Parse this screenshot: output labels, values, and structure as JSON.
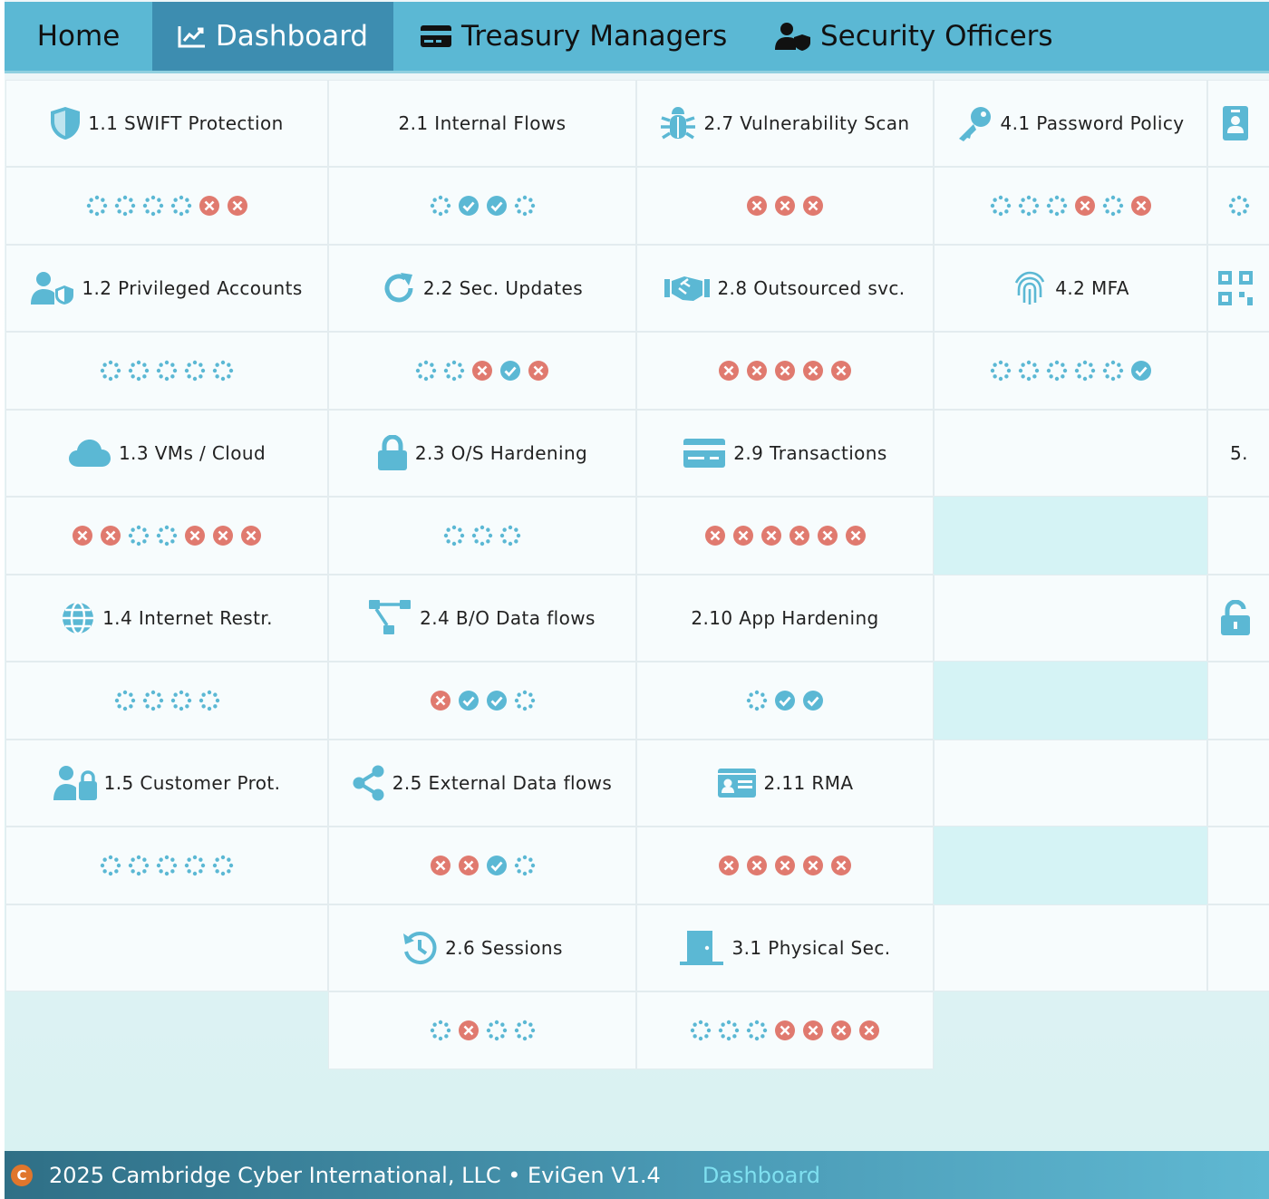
{
  "nav": {
    "home": "Home",
    "dashboard": "Dashboard",
    "treasury": "Treasury Managers",
    "security": "Security Officers"
  },
  "colors": {
    "nav_bg": "#5bb8d4",
    "nav_active": "#3d8db0",
    "icon": "#5bb8d4",
    "fail": "#e07a6f",
    "pass": "#5bb8d4",
    "pending": "#5bb8d4"
  },
  "columns": [
    {
      "rows": [
        {
          "label": "1.1 SWIFT Protection",
          "icon": "shield-icon",
          "statuses": [
            "pending",
            "pending",
            "pending",
            "pending",
            "fail",
            "fail"
          ]
        },
        {
          "label": "1.2 Privileged Accounts",
          "icon": "user-shield-icon",
          "statuses": [
            "pending",
            "pending",
            "pending",
            "pending",
            "pending"
          ]
        },
        {
          "label": "1.3 VMs / Cloud",
          "icon": "cloud-icon",
          "statuses": [
            "fail",
            "fail",
            "pending",
            "pending",
            "fail",
            "fail",
            "fail"
          ]
        },
        {
          "label": "1.4 Internet Restr.",
          "icon": "globe-icon",
          "statuses": [
            "pending",
            "pending",
            "pending",
            "pending"
          ]
        },
        {
          "label": "1.5 Customer Prot.",
          "icon": "user-lock-icon",
          "statuses": [
            "pending",
            "pending",
            "pending",
            "pending",
            "pending"
          ]
        }
      ]
    },
    {
      "rows": [
        {
          "label": "2.1 Internal Flows",
          "icon": "",
          "statuses": [
            "pending",
            "pass",
            "pass",
            "pending"
          ]
        },
        {
          "label": "2.2 Sec. Updates",
          "icon": "refresh-icon",
          "statuses": [
            "pending",
            "pending",
            "fail",
            "pass",
            "fail"
          ]
        },
        {
          "label": "2.3 O/S Hardening",
          "icon": "lock-icon",
          "statuses": [
            "pending",
            "pending",
            "pending"
          ]
        },
        {
          "label": "2.4 B/O Data flows",
          "icon": "sitemap-icon",
          "statuses": [
            "fail",
            "pass",
            "pass",
            "pending"
          ]
        },
        {
          "label": "2.5 External Data flows",
          "icon": "share-icon",
          "statuses": [
            "fail",
            "fail",
            "pass",
            "pending"
          ]
        },
        {
          "label": "2.6 Sessions",
          "icon": "history-icon",
          "statuses": [
            "pending",
            "fail",
            "pending",
            "pending"
          ]
        }
      ]
    },
    {
      "rows": [
        {
          "label": "2.7 Vulnerability Scan",
          "icon": "bug-icon",
          "statuses": [
            "fail",
            "fail",
            "fail"
          ]
        },
        {
          "label": "2.8 Outsourced svc.",
          "icon": "handshake-icon",
          "statuses": [
            "fail",
            "fail",
            "fail",
            "fail",
            "fail"
          ]
        },
        {
          "label": "2.9 Transactions",
          "icon": "credit-card-icon",
          "statuses": [
            "fail",
            "fail",
            "fail",
            "fail",
            "fail",
            "fail"
          ]
        },
        {
          "label": "2.10 App Hardening",
          "icon": "",
          "statuses": [
            "pending",
            "pass",
            "pass"
          ]
        },
        {
          "label": "2.11 RMA",
          "icon": "id-card-icon",
          "statuses": [
            "fail",
            "fail",
            "fail",
            "fail",
            "fail"
          ]
        },
        {
          "label": "3.1 Physical Sec.",
          "icon": "door-icon",
          "statuses": [
            "pending",
            "pending",
            "pending",
            "fail",
            "fail",
            "fail",
            "fail"
          ]
        }
      ]
    },
    {
      "rows": [
        {
          "label": "4.1 Password Policy",
          "icon": "key-icon",
          "statuses": [
            "pending",
            "pending",
            "pending",
            "fail",
            "pending",
            "fail"
          ]
        },
        {
          "label": "4.2 MFA",
          "icon": "fingerprint-icon",
          "statuses": [
            "pending",
            "pending",
            "pending",
            "pending",
            "pending",
            "pass"
          ]
        }
      ]
    },
    {
      "rows": [
        {
          "label": "",
          "icon": "id-badge-icon",
          "statuses": [
            "pending"
          ]
        },
        {
          "label": "",
          "icon": "qrcode-icon",
          "statuses": []
        },
        {
          "label": "5.",
          "icon": "",
          "statuses": []
        },
        {
          "label": "",
          "icon": "unlock-icon",
          "statuses": []
        }
      ]
    }
  ],
  "footer": {
    "copyright_mark": "C",
    "text": "2025 Cambridge Cyber International, LLC • EviGen V1.4",
    "link": "Dashboard"
  }
}
